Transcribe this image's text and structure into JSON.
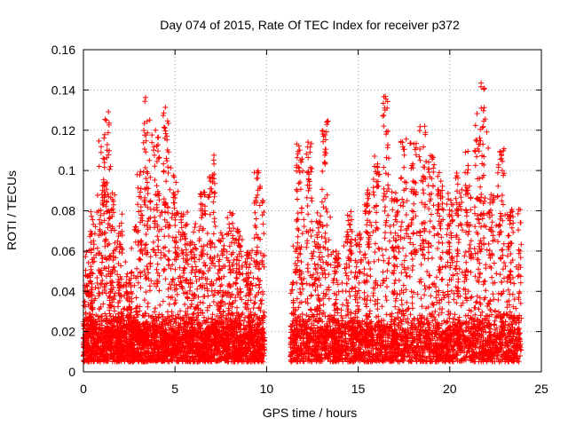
{
  "chart_data": {
    "type": "scatter",
    "title": "Day 074 of 2015, Rate Of TEC Index for receiver p372",
    "xlabel": "GPS time / hours",
    "ylabel": "ROTI / TECUs",
    "xlim": [
      0,
      25
    ],
    "ylim": [
      0,
      0.16
    ],
    "x_ticks": [
      0,
      5,
      10,
      15,
      20,
      25
    ],
    "x_tick_labels": [
      "0",
      "5",
      "10",
      "15",
      "20",
      "25"
    ],
    "y_ticks": [
      0,
      0.02,
      0.04,
      0.06,
      0.08,
      0.1,
      0.12,
      0.14,
      0.16
    ],
    "y_tick_labels": [
      "0",
      "0.02",
      "0.04",
      "0.06",
      "0.08",
      "0.1",
      "0.12",
      "0.14",
      "0.16"
    ],
    "grid": true,
    "marker": "+",
    "color": "#ff0000",
    "coverage_hours": [
      [
        0,
        9.9
      ],
      [
        11.3,
        23.9
      ]
    ],
    "series": [
      {
        "values_envelope": [
          {
            "x": 0.0,
            "y": 0.06
          },
          {
            "x": 0.5,
            "y": 0.08
          },
          {
            "x": 1.0,
            "y": 0.12
          },
          {
            "x": 1.3,
            "y": 0.13
          },
          {
            "x": 1.6,
            "y": 0.09
          },
          {
            "x": 2.0,
            "y": 0.08
          },
          {
            "x": 2.5,
            "y": 0.05
          },
          {
            "x": 3.0,
            "y": 0.1
          },
          {
            "x": 3.5,
            "y": 0.138
          },
          {
            "x": 4.0,
            "y": 0.12
          },
          {
            "x": 4.5,
            "y": 0.136
          },
          {
            "x": 5.0,
            "y": 0.1
          },
          {
            "x": 5.5,
            "y": 0.08
          },
          {
            "x": 6.0,
            "y": 0.07
          },
          {
            "x": 6.5,
            "y": 0.09
          },
          {
            "x": 7.0,
            "y": 0.108
          },
          {
            "x": 7.5,
            "y": 0.07
          },
          {
            "x": 8.0,
            "y": 0.08
          },
          {
            "x": 8.5,
            "y": 0.07
          },
          {
            "x": 9.0,
            "y": 0.06
          },
          {
            "x": 9.5,
            "y": 0.1
          },
          {
            "x": 9.9,
            "y": 0.09
          },
          {
            "x": 11.3,
            "y": 0.05
          },
          {
            "x": 11.8,
            "y": 0.12
          },
          {
            "x": 12.3,
            "y": 0.115
          },
          {
            "x": 12.8,
            "y": 0.08
          },
          {
            "x": 13.2,
            "y": 0.125
          },
          {
            "x": 13.8,
            "y": 0.06
          },
          {
            "x": 14.5,
            "y": 0.08
          },
          {
            "x": 15.0,
            "y": 0.07
          },
          {
            "x": 15.5,
            "y": 0.09
          },
          {
            "x": 16.0,
            "y": 0.11
          },
          {
            "x": 16.5,
            "y": 0.138
          },
          {
            "x": 17.0,
            "y": 0.09
          },
          {
            "x": 17.5,
            "y": 0.12
          },
          {
            "x": 18.0,
            "y": 0.12
          },
          {
            "x": 18.5,
            "y": 0.13
          },
          {
            "x": 19.0,
            "y": 0.11
          },
          {
            "x": 19.5,
            "y": 0.1
          },
          {
            "x": 20.0,
            "y": 0.09
          },
          {
            "x": 20.5,
            "y": 0.1
          },
          {
            "x": 21.0,
            "y": 0.11
          },
          {
            "x": 21.5,
            "y": 0.13
          },
          {
            "x": 21.8,
            "y": 0.144
          },
          {
            "x": 22.3,
            "y": 0.09
          },
          {
            "x": 22.8,
            "y": 0.115
          },
          {
            "x": 23.3,
            "y": 0.08
          },
          {
            "x": 23.9,
            "y": 0.087
          }
        ],
        "baseline_range": [
          0.005,
          0.03
        ]
      }
    ]
  }
}
